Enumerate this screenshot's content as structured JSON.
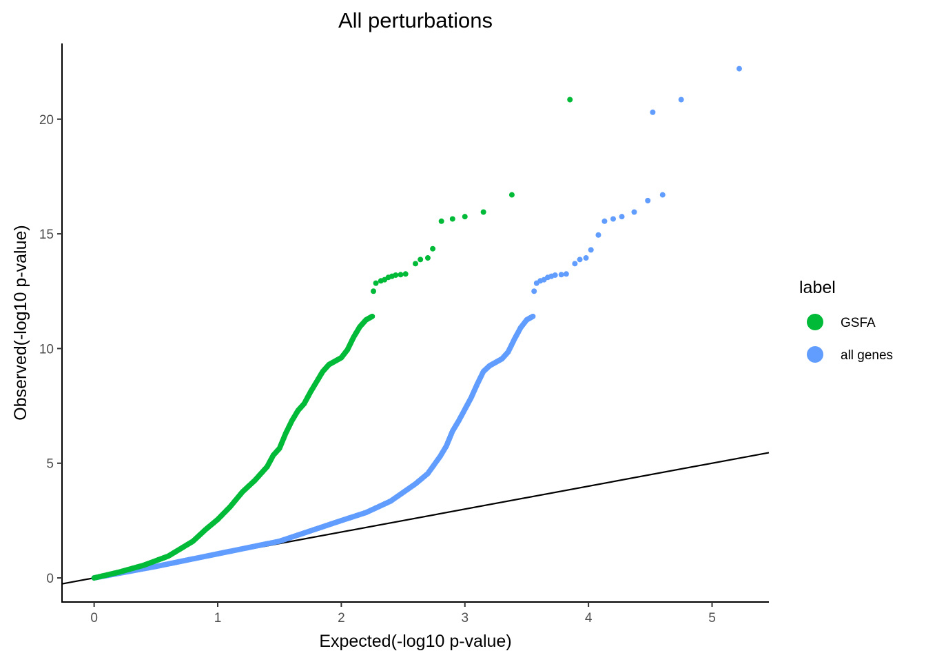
{
  "chart_data": {
    "type": "scatter",
    "title": "All perturbations",
    "xlabel": "Expected(-log10 p-value)",
    "ylabel": "Observed(-log10 p-value)",
    "xlim": [
      -0.26,
      5.46
    ],
    "ylim": [
      -1.05,
      23.3
    ],
    "x_ticks": [
      0,
      1,
      2,
      3,
      4,
      5
    ],
    "x_tick_labels": [
      "0",
      "1",
      "2",
      "3",
      "4",
      "5"
    ],
    "y_ticks": [
      0,
      5,
      10,
      15,
      20
    ],
    "y_tick_labels": [
      "0",
      "5",
      "10",
      "15",
      "20"
    ],
    "grid": false,
    "legend": {
      "title": "label",
      "position": "right",
      "entries": [
        {
          "name": "GSFA",
          "color": "#00BA38"
        },
        {
          "name": "all genes",
          "color": "#619CFF"
        }
      ]
    },
    "reference_line": {
      "slope": 1,
      "intercept": 0,
      "color": "#000000"
    },
    "series": [
      {
        "name": "GSFA",
        "color": "#00BA38",
        "curve": [
          [
            0.0,
            0.0
          ],
          [
            0.2,
            0.25
          ],
          [
            0.4,
            0.55
          ],
          [
            0.6,
            0.95
          ],
          [
            0.8,
            1.6
          ],
          [
            0.9,
            2.1
          ],
          [
            1.0,
            2.55
          ],
          [
            1.1,
            3.1
          ],
          [
            1.2,
            3.75
          ],
          [
            1.3,
            4.25
          ],
          [
            1.4,
            4.85
          ],
          [
            1.45,
            5.35
          ],
          [
            1.5,
            5.65
          ],
          [
            1.55,
            6.3
          ],
          [
            1.6,
            6.85
          ],
          [
            1.65,
            7.3
          ],
          [
            1.7,
            7.6
          ],
          [
            1.75,
            8.1
          ],
          [
            1.8,
            8.55
          ],
          [
            1.85,
            9.0
          ],
          [
            1.9,
            9.3
          ],
          [
            1.95,
            9.45
          ],
          [
            2.0,
            9.6
          ],
          [
            2.05,
            9.95
          ],
          [
            2.1,
            10.5
          ],
          [
            2.15,
            10.95
          ],
          [
            2.2,
            11.25
          ],
          [
            2.25,
            11.4
          ]
        ],
        "points": [
          [
            2.26,
            12.5
          ],
          [
            2.28,
            12.85
          ],
          [
            2.32,
            12.95
          ],
          [
            2.35,
            13.0
          ],
          [
            2.38,
            13.1
          ],
          [
            2.41,
            13.15
          ],
          [
            2.44,
            13.2
          ],
          [
            2.48,
            13.22
          ],
          [
            2.52,
            13.25
          ],
          [
            2.6,
            13.7
          ],
          [
            2.64,
            13.88
          ],
          [
            2.7,
            13.95
          ],
          [
            2.74,
            14.35
          ],
          [
            2.81,
            15.55
          ],
          [
            2.9,
            15.65
          ],
          [
            3.0,
            15.75
          ],
          [
            3.15,
            15.95
          ],
          [
            3.38,
            16.7
          ],
          [
            3.85,
            20.85
          ]
        ]
      },
      {
        "name": "all genes",
        "color": "#619CFF",
        "curve": [
          [
            0.0,
            0.0
          ],
          [
            0.5,
            0.5
          ],
          [
            1.0,
            1.05
          ],
          [
            1.5,
            1.6
          ],
          [
            2.0,
            2.5
          ],
          [
            2.2,
            2.85
          ],
          [
            2.4,
            3.35
          ],
          [
            2.6,
            4.1
          ],
          [
            2.7,
            4.55
          ],
          [
            2.8,
            5.3
          ],
          [
            2.85,
            5.75
          ],
          [
            2.9,
            6.4
          ],
          [
            2.95,
            6.85
          ],
          [
            3.0,
            7.35
          ],
          [
            3.05,
            7.85
          ],
          [
            3.1,
            8.45
          ],
          [
            3.15,
            9.0
          ],
          [
            3.2,
            9.25
          ],
          [
            3.25,
            9.4
          ],
          [
            3.3,
            9.55
          ],
          [
            3.35,
            9.85
          ],
          [
            3.4,
            10.4
          ],
          [
            3.45,
            10.9
          ],
          [
            3.5,
            11.25
          ],
          [
            3.55,
            11.4
          ]
        ],
        "points": [
          [
            3.56,
            12.5
          ],
          [
            3.58,
            12.85
          ],
          [
            3.61,
            12.95
          ],
          [
            3.64,
            13.0
          ],
          [
            3.67,
            13.1
          ],
          [
            3.7,
            13.15
          ],
          [
            3.73,
            13.2
          ],
          [
            3.78,
            13.22
          ],
          [
            3.82,
            13.25
          ],
          [
            3.89,
            13.7
          ],
          [
            3.93,
            13.88
          ],
          [
            3.98,
            13.95
          ],
          [
            4.02,
            14.3
          ],
          [
            4.08,
            14.95
          ],
          [
            4.13,
            15.55
          ],
          [
            4.2,
            15.65
          ],
          [
            4.27,
            15.75
          ],
          [
            4.37,
            15.95
          ],
          [
            4.48,
            16.45
          ],
          [
            4.6,
            16.7
          ],
          [
            4.52,
            20.3
          ],
          [
            4.75,
            20.85
          ],
          [
            5.22,
            22.2
          ]
        ]
      }
    ]
  }
}
